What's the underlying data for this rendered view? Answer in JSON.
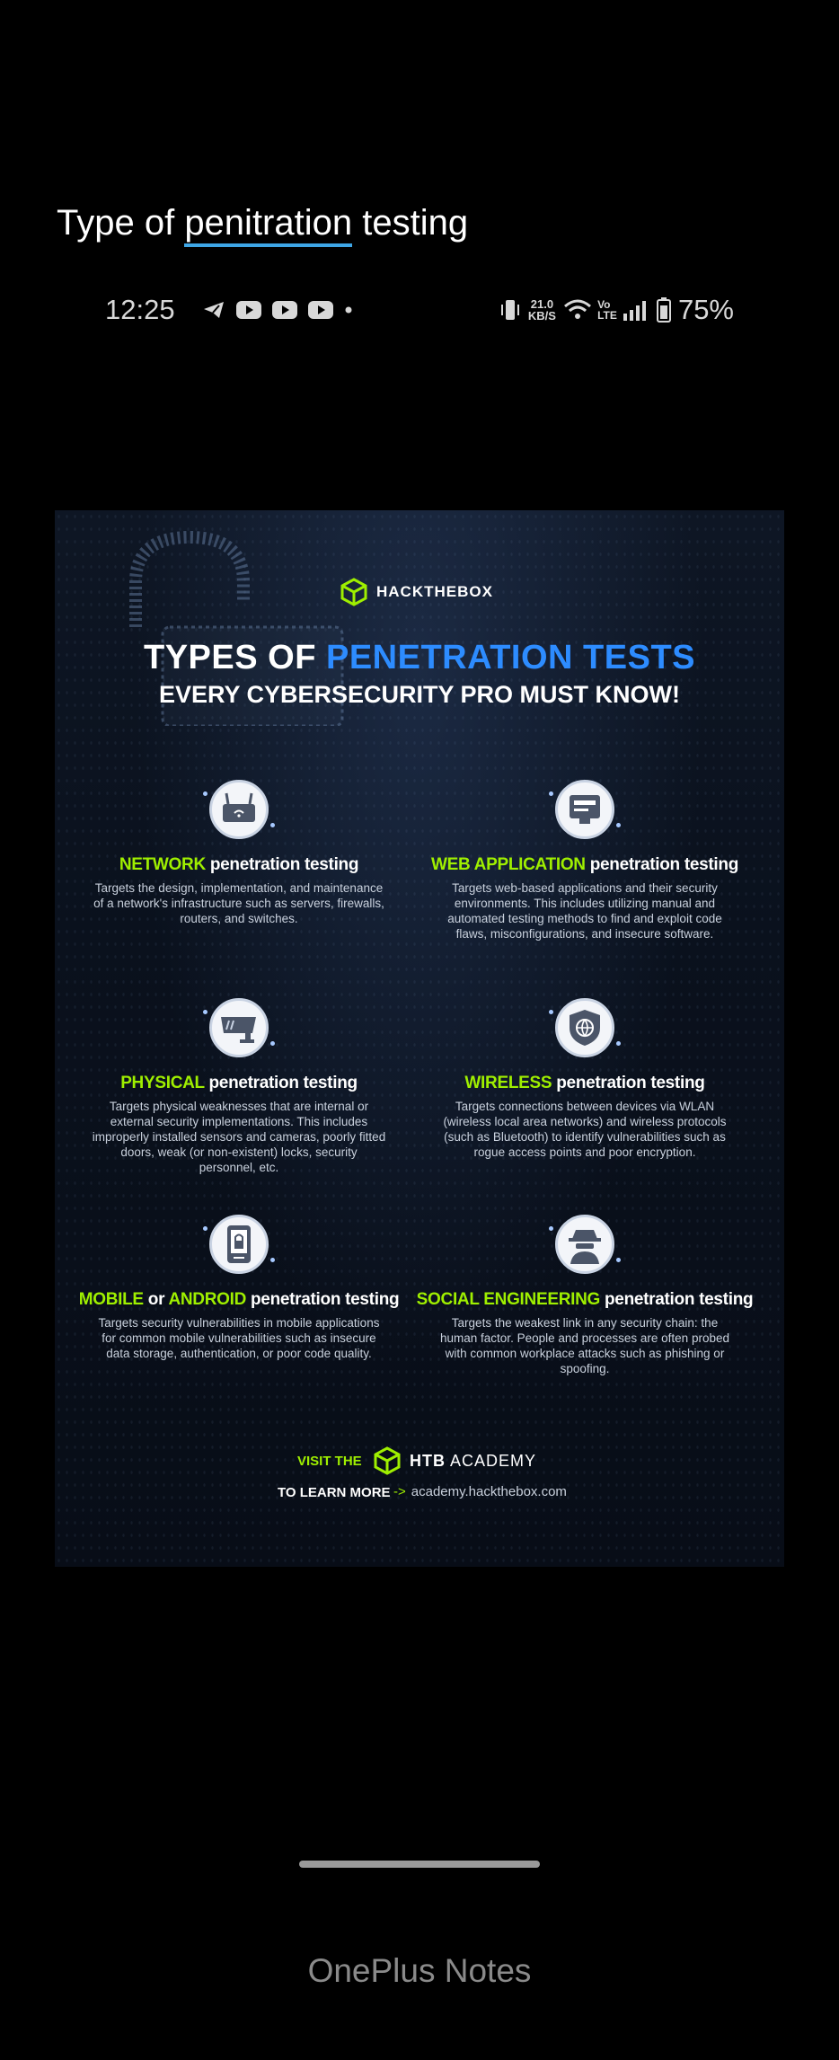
{
  "note": {
    "title_before": "Type of ",
    "title_underlined": "penitration",
    "title_after": " testing"
  },
  "statusbar": {
    "time": "12:25",
    "icons_left": [
      "telegram-icon",
      "youtube-icon",
      "youtube-icon",
      "youtube-icon",
      "dot-icon"
    ],
    "speed_value": "21.0",
    "speed_unit": "KB/S",
    "volte": "Vo LTE",
    "battery_percent": "75%"
  },
  "infographic": {
    "brand": "HACKTHEBOX",
    "headline_part1": "TYPES OF ",
    "headline_part2": "PENETRATION TESTS",
    "headline_line2": "EVERY CYBERSECURITY PRO MUST KNOW!",
    "accent_color": "#9fef00",
    "blue_color": "#2d8cff",
    "cards": [
      {
        "icon": "router-icon",
        "title_highlight": "NETWORK",
        "title_rest": " penetration testing",
        "description": "Targets the design, implementation, and maintenance of a network's infrastructure such as servers, firewalls, routers, and switches."
      },
      {
        "icon": "web-page-icon",
        "title_highlight": "WEB APPLICATION",
        "title_rest": " penetration testing",
        "description": "Targets web-based applications and their security environments. This includes utilizing manual and automated testing methods to find and exploit code flaws, misconfigurations, and insecure software."
      },
      {
        "icon": "security-camera-icon",
        "title_highlight": "PHYSICAL",
        "title_rest": " penetration testing",
        "description": "Targets physical weaknesses that are internal or external security implementations. This includes improperly installed sensors and cameras, poorly fitted doors, weak (or non-existent) locks, security personnel, etc."
      },
      {
        "icon": "shield-globe-icon",
        "title_highlight": "WIRELESS",
        "title_rest": " penetration testing",
        "description": "Targets connections between devices via WLAN (wireless local area networks) and wireless protocols (such as Bluetooth) to identify vulnerabilities such as rogue access points and poor encryption."
      },
      {
        "icon": "mobile-lock-icon",
        "title_highlight": "MOBILE",
        "title_middle": " or ",
        "title_highlight2": "ANDROID",
        "title_rest": " penetration testing",
        "description": "Targets security vulnerabilities in mobile applications for common mobile vulnerabilities such as insecure data storage, authentication, or poor code quality."
      },
      {
        "icon": "hacker-icon",
        "title_highlight": "SOCIAL ENGINEERING",
        "title_rest": " penetration testing",
        "description": "Targets the weakest link in any security chain: the human factor. People and processes are often probed with common workplace attacks such as phishing or spoofing."
      }
    ],
    "footer": {
      "visit": "VISIT THE",
      "learn": "TO LEARN MORE",
      "brand_bold": "HTB",
      "brand_rest": " ACADEMY",
      "arrow": "->",
      "url": "academy.hackthebox.com"
    }
  },
  "app_label": "OnePlus Notes"
}
